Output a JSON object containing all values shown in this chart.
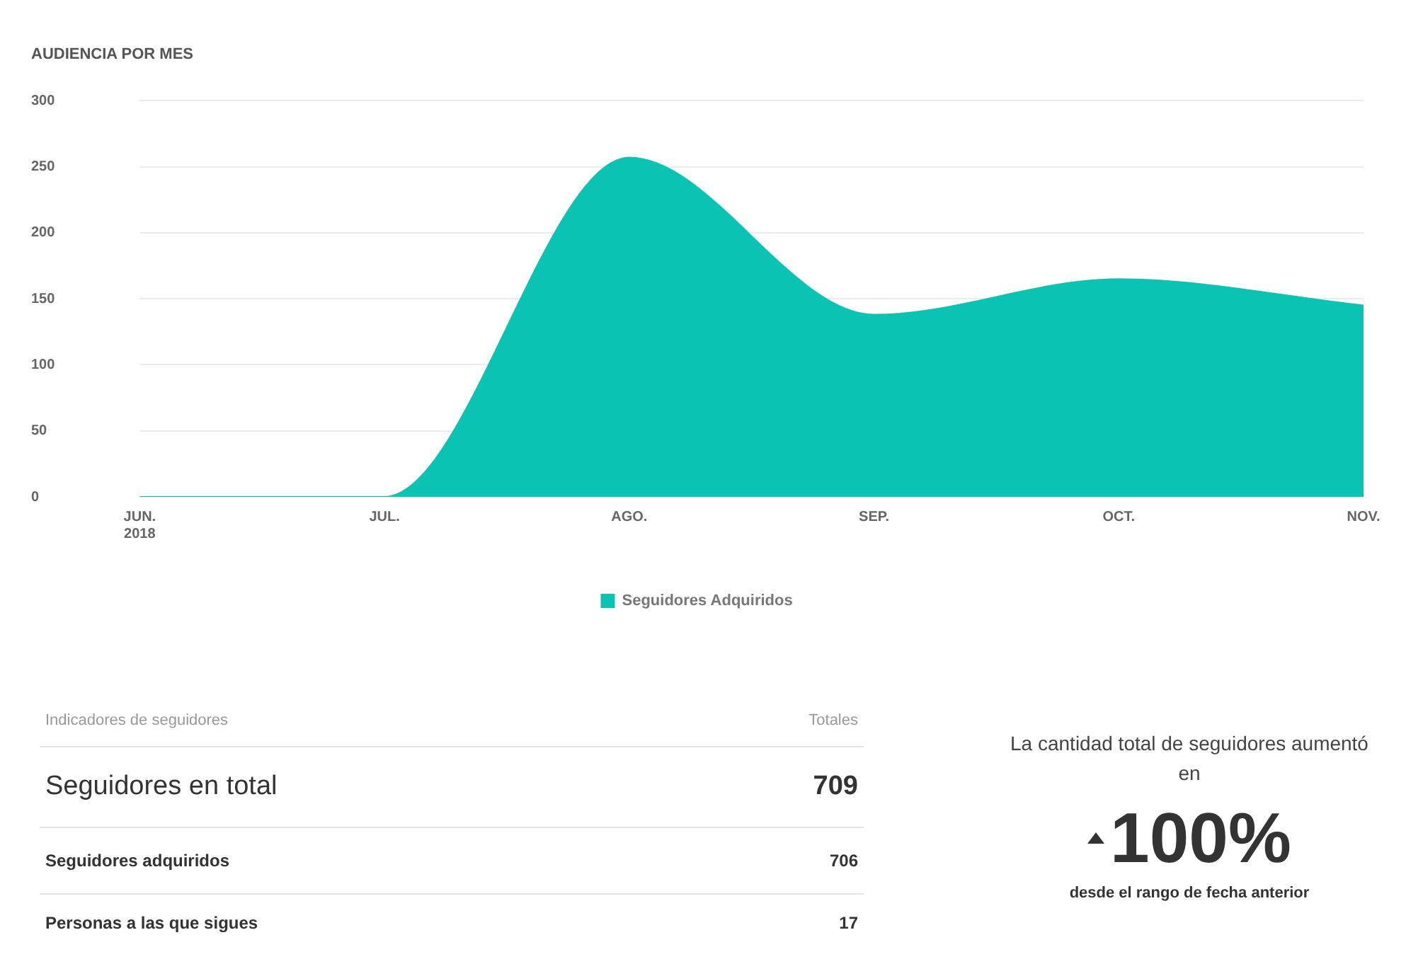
{
  "chart_data": [
    {
      "type": "area",
      "title": "AUDIENCIA POR MES",
      "categories": [
        "JUN.\n2018",
        "JUL.",
        "AGO.",
        "SEP.",
        "OCT.",
        "NOV."
      ],
      "series": [
        {
          "name": "Seguidores Adquiridos",
          "color": "#0ac3b3",
          "values": [
            0,
            0,
            257,
            138,
            165,
            145
          ]
        }
      ],
      "ylim": [
        0,
        300
      ],
      "yticks": [
        0,
        50,
        100,
        150,
        200,
        250,
        300
      ],
      "grid": "y",
      "legend": "bottom"
    },
    {
      "type": "other",
      "annotations": [
        "Indicadores de seguidores",
        "Totales"
      ],
      "categories": [
        "Seguidores en total",
        "Seguidores adquiridos",
        "Personas a las que sigues"
      ],
      "values": [
        709,
        706,
        17
      ],
      "data_labels": true
    },
    {
      "type": "other",
      "annotations": [
        "La cantidad total de seguidores aumentó en",
        "desde el rango de fecha anterior"
      ],
      "values": [
        100
      ],
      "value_labels": [
        "100%"
      ]
    }
  ]
}
